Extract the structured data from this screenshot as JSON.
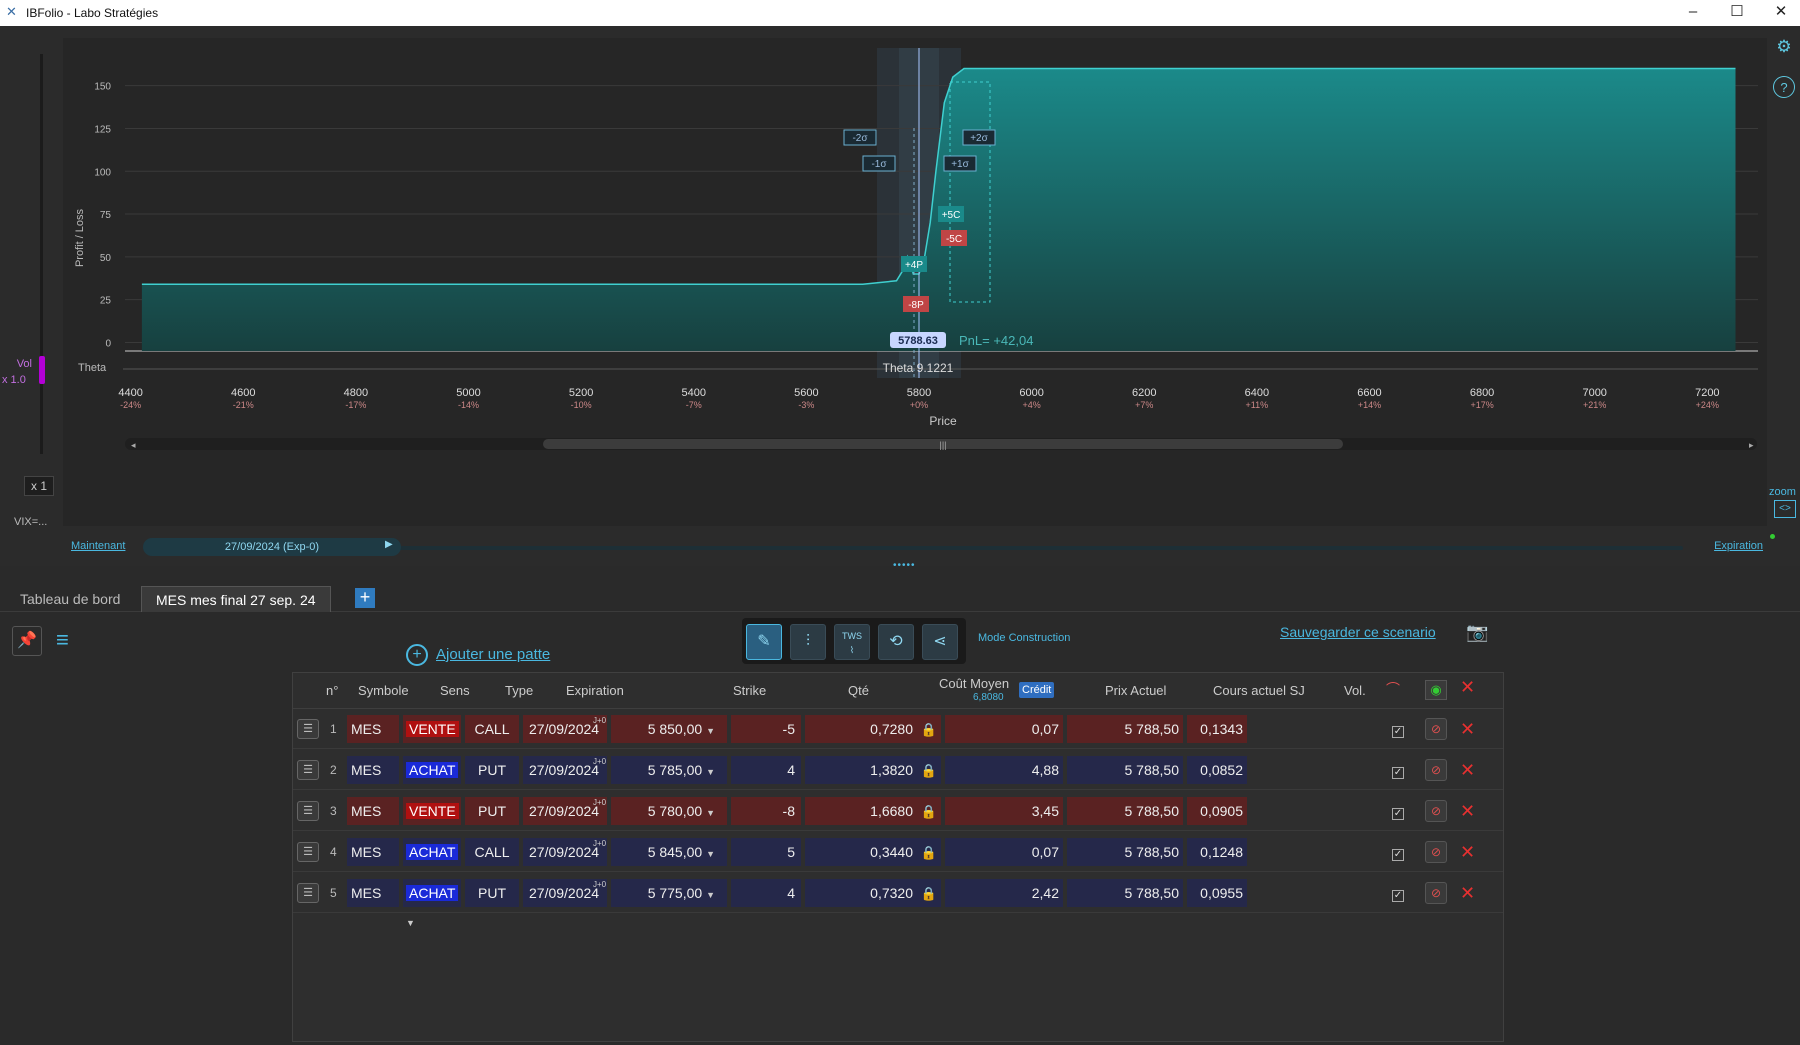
{
  "window": {
    "title": "IBFolio - Labo Stratégies",
    "minimize": "–",
    "maximize": "☐",
    "close": "✕"
  },
  "left_controls": {
    "vol_label": "Vol",
    "vol_mult": "x 1.0",
    "x1": "x 1",
    "vix": "VIX=..."
  },
  "right_controls": {
    "zoom": "zoom"
  },
  "chart": {
    "ylabel": "Profit / Loss",
    "xlabel": "Price",
    "y_ticks": [
      "150",
      "125",
      "100",
      "75",
      "50",
      "25",
      "0"
    ],
    "x_ticks": [
      "4400",
      "4600",
      "4800",
      "5000",
      "5200",
      "5400",
      "5600",
      "5800",
      "6000",
      "6200",
      "6400",
      "6600",
      "6800",
      "7000",
      "7200"
    ],
    "x_pcts": [
      "-24%",
      "-21%",
      "-17%",
      "-14%",
      "-10%",
      "-7%",
      "-3%",
      "+0%",
      "+4%",
      "+7%",
      "+11%",
      "+14%",
      "+17%",
      "+21%",
      "+24%"
    ],
    "theta_label": "Theta",
    "theta_value": "Theta 9.1221",
    "current_price": "5788.63",
    "pnl": "PnL= +42,04",
    "sigma": {
      "m2": "-2σ",
      "m1": "-1σ",
      "p2": "+2σ",
      "p1": "+1σ"
    },
    "strike_tags": {
      "c5p": "+5C",
      "c5m": "-5C",
      "p4": "+4P",
      "p8": "-8P"
    }
  },
  "chart_data": {
    "type": "area",
    "x": [
      4420,
      5700,
      5760,
      5775,
      5780,
      5785,
      5790,
      5800,
      5810,
      5820,
      5830,
      5845,
      5860,
      5880,
      7250
    ],
    "y": [
      34,
      34,
      36,
      44,
      50,
      46,
      40,
      40,
      50,
      70,
      100,
      140,
      155,
      160,
      160
    ],
    "xlabel": "Price",
    "ylabel": "Profit / Loss",
    "xlim": [
      4390,
      7290
    ],
    "ylim": [
      -5,
      172
    ]
  },
  "timeline": {
    "now": "Maintenant",
    "date": "27/09/2024   (Exp-0)",
    "end": "Expiration"
  },
  "tabs": [
    "Tableau de bord",
    "MES mes final 27 sep. 24"
  ],
  "toolbar": {
    "add_leg": "Ajouter une patte",
    "mode_label": "Mode Construction",
    "save_scenario": "Sauvegarder ce scenario",
    "mode_icons": [
      "pen-icon",
      "sliders-icon",
      "tws-icon",
      "history-icon",
      "share-icon"
    ],
    "tws": "TWS"
  },
  "table": {
    "headers": {
      "n": "n°",
      "symbole": "Symbole",
      "sens": "Sens",
      "type": "Type",
      "expiration": "Expiration",
      "strike": "Strike",
      "qte": "Qté",
      "cout": "Coût Moyen",
      "cout_sub": "6,8080",
      "credit": "Crédit",
      "prix": "Prix Actuel",
      "cours": "Cours actuel SJ",
      "vol": "Vol."
    },
    "rows": [
      {
        "n": "1",
        "sym": "MES",
        "sens": "VENTE",
        "type": "CALL",
        "exp": "27/09/2024",
        "j": "J+0",
        "strike": "5 850,00",
        "qte": "-5",
        "cout": "0,7280",
        "prix": "0,07",
        "cours": "5 788,50",
        "vol": "0,1343"
      },
      {
        "n": "2",
        "sym": "MES",
        "sens": "ACHAT",
        "type": "PUT",
        "exp": "27/09/2024",
        "j": "J+0",
        "strike": "5 785,00",
        "qte": "4",
        "cout": "1,3820",
        "prix": "4,88",
        "cours": "5 788,50",
        "vol": "0,0852"
      },
      {
        "n": "3",
        "sym": "MES",
        "sens": "VENTE",
        "type": "PUT",
        "exp": "27/09/2024",
        "j": "J+0",
        "strike": "5 780,00",
        "qte": "-8",
        "cout": "1,6680",
        "prix": "3,45",
        "cours": "5 788,50",
        "vol": "0,0905"
      },
      {
        "n": "4",
        "sym": "MES",
        "sens": "ACHAT",
        "type": "CALL",
        "exp": "27/09/2024",
        "j": "J+0",
        "strike": "5 845,00",
        "qte": "5",
        "cout": "0,3440",
        "prix": "0,07",
        "cours": "5 788,50",
        "vol": "0,1248"
      },
      {
        "n": "5",
        "sym": "MES",
        "sens": "ACHAT",
        "type": "PUT",
        "exp": "27/09/2024",
        "j": "J+0",
        "strike": "5 775,00",
        "qte": "4",
        "cout": "0,7320",
        "prix": "2,42",
        "cours": "5 788,50",
        "vol": "0,0955"
      }
    ]
  }
}
